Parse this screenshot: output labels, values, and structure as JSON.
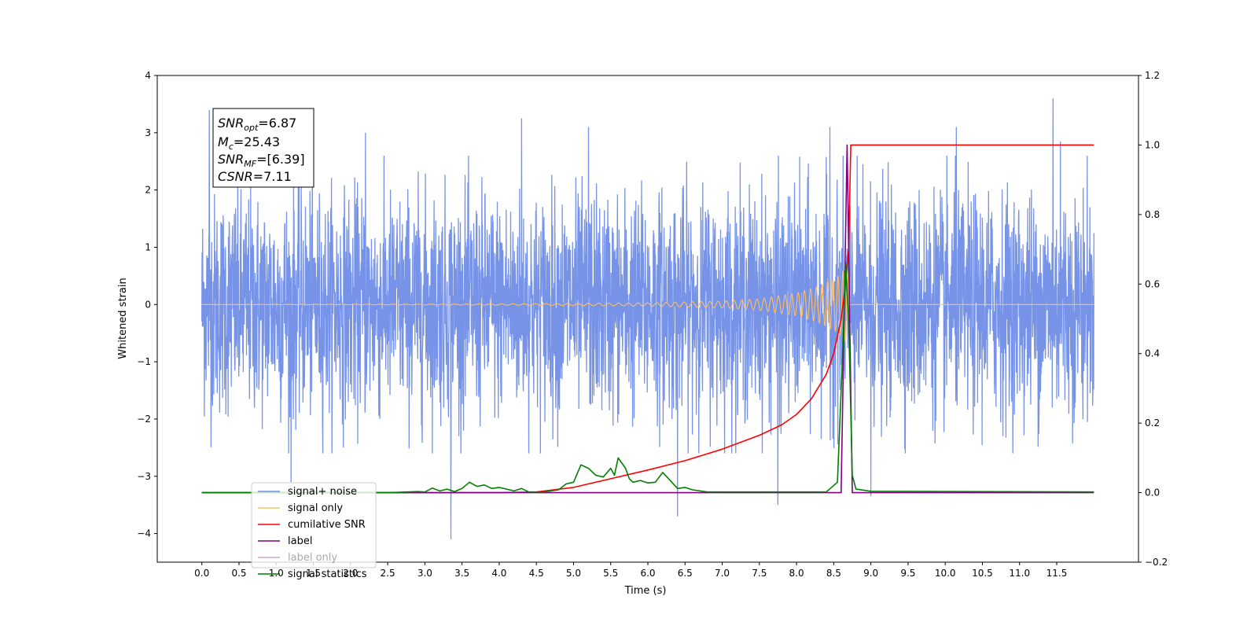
{
  "chart_data": {
    "type": "line",
    "title": "",
    "xlabel": "Time (s)",
    "ylabel": "Whitened strain",
    "y2label": "",
    "xlim": [
      -0.6,
      12.6
    ],
    "ylim": [
      -4.5,
      4.0
    ],
    "y2lim": [
      -0.2,
      1.2
    ],
    "grid": false,
    "legend_position": "bottom-left",
    "xticks": [
      0.0,
      0.5,
      1.0,
      1.5,
      2.0,
      2.5,
      3.0,
      3.5,
      4.0,
      4.5,
      5.0,
      5.5,
      6.0,
      6.5,
      7.0,
      7.5,
      8.0,
      8.5,
      9.0,
      9.5,
      10.0,
      10.5,
      11.0,
      11.5
    ],
    "xtick_labels": [
      "0.0",
      "0.5",
      "1.0",
      "1.5",
      "2.0",
      "2.5",
      "3.0",
      "3.5",
      "4.0",
      "4.5",
      "5.0",
      "5.5",
      "6.0",
      "6.5",
      "7.0",
      "7.5",
      "8.0",
      "8.5",
      "9.0",
      "9.5",
      "10.0",
      "10.5",
      "11.0",
      "11.5"
    ],
    "yticks": [
      -4,
      -3,
      -2,
      -1,
      0,
      1,
      2,
      3,
      4
    ],
    "ytick_labels": [
      "−4",
      "−3",
      "−2",
      "−1",
      "0",
      "1",
      "2",
      "3",
      "4"
    ],
    "y2ticks": [
      -0.2,
      0.0,
      0.2,
      0.4,
      0.6,
      0.8,
      1.0,
      1.2
    ],
    "y2tick_labels": [
      "−0.2",
      "0.0",
      "0.2",
      "0.4",
      "0.6",
      "0.8",
      "1.0",
      "1.2"
    ],
    "annotation": {
      "snr_opt": "6.87",
      "mc": "25.43",
      "snr_mf": "[6.39]",
      "csnr": "7.11"
    },
    "series": [
      {
        "name": "signal+ noise",
        "axis": "left",
        "color": "#6f8de6",
        "kind": "noise",
        "x_range": [
          0.0,
          12.0
        ],
        "envelope": 1.0,
        "spikes": [
          [
            0.1,
            3.4
          ],
          [
            1.2,
            -3.1
          ],
          [
            2.2,
            3.0
          ],
          [
            3.35,
            -4.1
          ],
          [
            4.3,
            3.25
          ],
          [
            5.2,
            3.1
          ],
          [
            6.4,
            -3.7
          ],
          [
            7.75,
            -3.5
          ],
          [
            8.45,
            3.1
          ],
          [
            9.0,
            -3.35
          ],
          [
            10.15,
            3.1
          ],
          [
            11.45,
            3.6
          ],
          [
            11.55,
            2.85
          ]
        ]
      },
      {
        "name": "signal only",
        "axis": "left",
        "color": "#ffbf66",
        "kind": "chirp",
        "points": [
          [
            0.0,
            0.0
          ],
          [
            4.0,
            0.01
          ],
          [
            6.0,
            0.03
          ],
          [
            7.0,
            0.06
          ],
          [
            7.5,
            0.1
          ],
          [
            8.0,
            0.2
          ],
          [
            8.3,
            0.32
          ],
          [
            8.5,
            0.45
          ],
          [
            8.6,
            0.55
          ],
          [
            8.68,
            0.7
          ],
          [
            8.72,
            0.0
          ],
          [
            12.0,
            0.0
          ]
        ]
      },
      {
        "name": "cumilative SNR",
        "axis": "right",
        "color": "#ff0000",
        "kind": "line",
        "points": [
          [
            0.0,
            0.0
          ],
          [
            4.0,
            0.0
          ],
          [
            4.5,
            0.002
          ],
          [
            5.0,
            0.015
          ],
          [
            5.5,
            0.04
          ],
          [
            6.0,
            0.065
          ],
          [
            6.5,
            0.092
          ],
          [
            7.0,
            0.125
          ],
          [
            7.5,
            0.165
          ],
          [
            7.8,
            0.195
          ],
          [
            8.0,
            0.225
          ],
          [
            8.2,
            0.27
          ],
          [
            8.4,
            0.34
          ],
          [
            8.5,
            0.4
          ],
          [
            8.6,
            0.5
          ],
          [
            8.65,
            0.58
          ],
          [
            8.7,
            0.7
          ],
          [
            8.73,
            1.0
          ],
          [
            12.0,
            1.0
          ]
        ]
      },
      {
        "name": "label",
        "axis": "right",
        "color": "#800080",
        "kind": "line",
        "points": [
          [
            0.0,
            0.0
          ],
          [
            8.6,
            0.0
          ],
          [
            8.68,
            1.0
          ],
          [
            8.75,
            0.0
          ],
          [
            12.0,
            0.0
          ]
        ]
      },
      {
        "name": "label only",
        "axis": "right",
        "color": "#800080",
        "kind": "legend-only",
        "points": []
      },
      {
        "name": "signal statistics",
        "axis": "right",
        "color": "#008000",
        "kind": "line",
        "points": [
          [
            0.0,
            0.0
          ],
          [
            2.5,
            0.0
          ],
          [
            2.9,
            0.003
          ],
          [
            3.0,
            0.002
          ],
          [
            3.1,
            0.013
          ],
          [
            3.2,
            0.005
          ],
          [
            3.3,
            0.01
          ],
          [
            3.4,
            0.003
          ],
          [
            3.5,
            0.012
          ],
          [
            3.6,
            0.03
          ],
          [
            3.7,
            0.018
          ],
          [
            3.8,
            0.022
          ],
          [
            3.9,
            0.012
          ],
          [
            4.0,
            0.015
          ],
          [
            4.2,
            0.005
          ],
          [
            4.3,
            0.012
          ],
          [
            4.4,
            0.002
          ],
          [
            4.6,
            0.002
          ],
          [
            4.8,
            0.008
          ],
          [
            4.9,
            0.025
          ],
          [
            5.0,
            0.03
          ],
          [
            5.1,
            0.08
          ],
          [
            5.2,
            0.07
          ],
          [
            5.3,
            0.05
          ],
          [
            5.4,
            0.045
          ],
          [
            5.5,
            0.07
          ],
          [
            5.55,
            0.05
          ],
          [
            5.6,
            0.1
          ],
          [
            5.7,
            0.07
          ],
          [
            5.75,
            0.04
          ],
          [
            5.8,
            0.03
          ],
          [
            5.9,
            0.035
          ],
          [
            6.0,
            0.028
          ],
          [
            6.1,
            0.03
          ],
          [
            6.2,
            0.058
          ],
          [
            6.3,
            0.035
          ],
          [
            6.4,
            0.012
          ],
          [
            6.5,
            0.015
          ],
          [
            6.6,
            0.008
          ],
          [
            6.8,
            0.002
          ],
          [
            8.4,
            0.002
          ],
          [
            8.55,
            0.03
          ],
          [
            8.62,
            0.4
          ],
          [
            8.66,
            0.66
          ],
          [
            8.7,
            0.5
          ],
          [
            8.75,
            0.05
          ],
          [
            8.8,
            0.01
          ],
          [
            9.0,
            0.004
          ],
          [
            12.0,
            0.002
          ]
        ]
      }
    ]
  }
}
